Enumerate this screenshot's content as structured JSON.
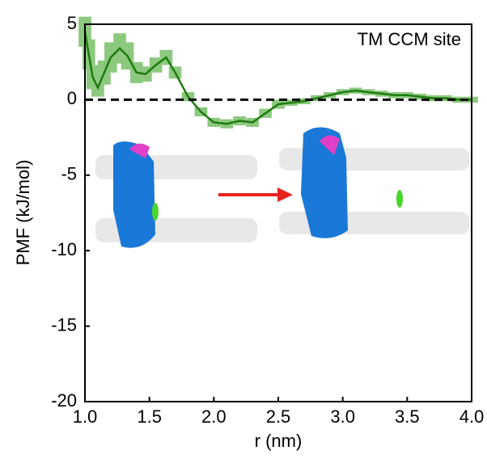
{
  "chart_data": {
    "type": "line",
    "x_label": "r (nm)",
    "y_label": "PMF (kJ/mol)",
    "annotation": "TM CCM site",
    "xlim": [
      1.0,
      4.0
    ],
    "ylim": [
      -20,
      5
    ],
    "xticks": [
      {
        "value": 1,
        "label": "1.0"
      },
      {
        "value": 1.5,
        "label": "1.5"
      },
      {
        "value": 2,
        "label": "2.0"
      },
      {
        "value": 2.5,
        "label": "2.5"
      },
      {
        "value": 3,
        "label": "3.0"
      },
      {
        "value": 3.5,
        "label": "3.5"
      },
      {
        "value": 4,
        "label": "4.0"
      }
    ],
    "yticks": [
      -20,
      -15,
      -10,
      -5,
      0,
      5
    ],
    "reference_line": 0,
    "color": "#1f7a10",
    "error_color": "#8cc97e",
    "x": [
      1.0,
      1.03,
      1.06,
      1.1,
      1.15,
      1.2,
      1.27,
      1.33,
      1.4,
      1.47,
      1.55,
      1.63,
      1.7,
      1.8,
      1.9,
      2.0,
      2.1,
      2.2,
      2.3,
      2.4,
      2.5,
      2.6,
      2.7,
      2.8,
      2.9,
      3.0,
      3.1,
      3.2,
      3.3,
      3.4,
      3.5,
      3.6,
      3.7,
      3.8,
      3.9,
      4.0
    ],
    "values": [
      4.5,
      3.0,
      1.5,
      0.8,
      1.8,
      2.8,
      3.4,
      2.9,
      1.8,
      1.7,
      2.3,
      2.8,
      1.8,
      0.2,
      -0.8,
      -1.5,
      -1.6,
      -1.4,
      -1.5,
      -0.9,
      -0.3,
      -0.2,
      -0.1,
      0.1,
      0.3,
      0.5,
      0.6,
      0.5,
      0.4,
      0.3,
      0.3,
      0.2,
      0.1,
      0.1,
      0.0,
      0.0
    ],
    "errors": [
      1.0,
      1.0,
      0.8,
      0.6,
      0.8,
      1.0,
      1.0,
      0.9,
      0.7,
      0.5,
      0.5,
      0.5,
      0.4,
      0.3,
      0.3,
      0.3,
      0.3,
      0.3,
      0.3,
      0.3,
      0.3,
      0.2,
      0.2,
      0.2,
      0.2,
      0.2,
      0.2,
      0.2,
      0.2,
      0.2,
      0.2,
      0.2,
      0.2,
      0.2,
      0.2,
      0.2
    ]
  }
}
